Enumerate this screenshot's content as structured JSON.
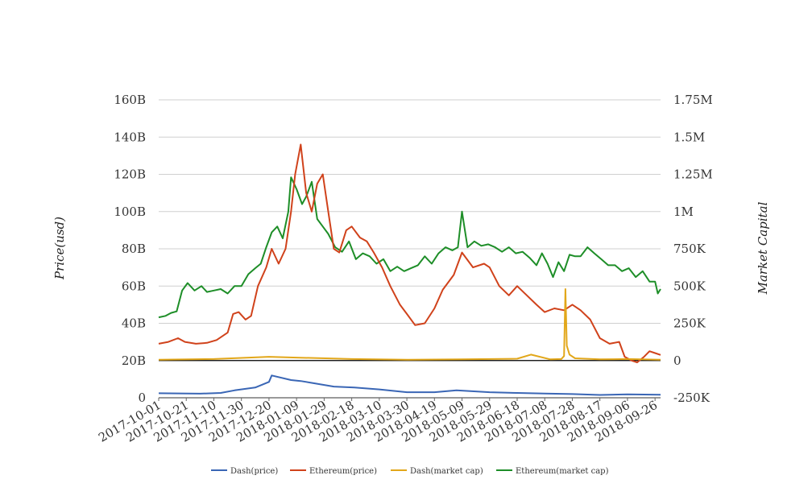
{
  "chart_data": {
    "type": "line",
    "title": "",
    "xlabel": "",
    "ylabel": "Price(usd)",
    "y2label": "Market Capital",
    "grid": true,
    "legend_position": "bottom",
    "x_start": "2017-10-01",
    "x_end": "2018-09-30",
    "x_tick_labels": [
      "2017-10-01",
      "2017-10-21",
      "2017-11-10",
      "2017-11-30",
      "2017-12-20",
      "2018-01-09",
      "2018-01-29",
      "2018-02-18",
      "2018-03-10",
      "2018-03-30",
      "2018-04-19",
      "2018-05-09",
      "2018-05-29",
      "2018-06-18",
      "2018-07-08",
      "2018-07-28",
      "2018-08-17",
      "2018-09-06",
      "2018-09-26"
    ],
    "y_left": {
      "min": 0,
      "max": 160000000000,
      "tick_values": [
        0,
        20000000000,
        40000000000,
        60000000000,
        80000000000,
        100000000000,
        120000000000,
        140000000000,
        160000000000
      ],
      "tick_labels": [
        "0",
        "20B",
        "40B",
        "60B",
        "80B",
        "100B",
        "120B",
        "140B",
        "160B"
      ]
    },
    "y_right": {
      "min": -250000,
      "max": 1750000,
      "tick_values": [
        -250000,
        0,
        250000,
        500000,
        750000,
        1000000,
        1250000,
        1500000,
        1750000
      ],
      "tick_labels": [
        "-250K",
        "0",
        "250K",
        "500K",
        "750K",
        "1M",
        "1.25M",
        "1.5M",
        "1.75M"
      ]
    },
    "series": [
      {
        "name": "Dash(price)",
        "color": "#3a66b5",
        "axis": "left",
        "x": [
          "2017-10-01",
          "2017-10-31",
          "2017-11-15",
          "2017-11-25",
          "2017-12-10",
          "2017-12-20",
          "2017-12-22",
          "2018-01-05",
          "2018-01-12",
          "2018-01-20",
          "2018-02-05",
          "2018-02-20",
          "2018-03-10",
          "2018-03-30",
          "2018-04-19",
          "2018-05-05",
          "2018-05-29",
          "2018-06-18",
          "2018-07-08",
          "2018-07-28",
          "2018-08-17",
          "2018-09-06",
          "2018-09-30"
        ],
        "values": [
          2400000000,
          2200000000,
          2600000000,
          4000000000,
          5500000000,
          8500000000,
          12000000000,
          9500000000,
          9000000000,
          8000000000,
          6000000000,
          5500000000,
          4500000000,
          3000000000,
          3000000000,
          4000000000,
          3000000000,
          2600000000,
          2300000000,
          2000000000,
          1500000000,
          1800000000,
          1600000000
        ]
      },
      {
        "name": "Ethereum(price)",
        "color": "#d0421b",
        "axis": "left",
        "x": [
          "2017-10-01",
          "2017-10-08",
          "2017-10-15",
          "2017-10-20",
          "2017-10-28",
          "2017-11-05",
          "2017-11-12",
          "2017-11-20",
          "2017-11-24",
          "2017-11-28",
          "2017-12-03",
          "2017-12-07",
          "2017-12-12",
          "2017-12-18",
          "2017-12-22",
          "2017-12-27",
          "2018-01-01",
          "2018-01-05",
          "2018-01-08",
          "2018-01-12",
          "2018-01-16",
          "2018-01-20",
          "2018-01-24",
          "2018-01-28",
          "2018-02-01",
          "2018-02-05",
          "2018-02-09",
          "2018-02-14",
          "2018-02-18",
          "2018-02-24",
          "2018-03-01",
          "2018-03-06",
          "2018-03-12",
          "2018-03-18",
          "2018-03-25",
          "2018-03-30",
          "2018-04-05",
          "2018-04-12",
          "2018-04-19",
          "2018-04-25",
          "2018-05-03",
          "2018-05-09",
          "2018-05-17",
          "2018-05-25",
          "2018-05-29",
          "2018-06-05",
          "2018-06-12",
          "2018-06-18",
          "2018-06-25",
          "2018-07-02",
          "2018-07-08",
          "2018-07-15",
          "2018-07-22",
          "2018-07-28",
          "2018-08-03",
          "2018-08-10",
          "2018-08-17",
          "2018-08-24",
          "2018-08-31",
          "2018-09-04",
          "2018-09-09",
          "2018-09-13",
          "2018-09-18",
          "2018-09-22",
          "2018-09-26",
          "2018-09-30"
        ],
        "values": [
          29000000000,
          30000000000,
          32000000000,
          30000000000,
          29000000000,
          29500000000,
          31000000000,
          35000000000,
          45000000000,
          46000000000,
          42000000000,
          44000000000,
          60000000000,
          70000000000,
          80000000000,
          72000000000,
          80000000000,
          100000000000,
          120000000000,
          136000000000,
          110000000000,
          100000000000,
          115000000000,
          120000000000,
          100000000000,
          80000000000,
          78000000000,
          90000000000,
          92000000000,
          86000000000,
          84000000000,
          78000000000,
          70000000000,
          60000000000,
          50000000000,
          45000000000,
          39000000000,
          40000000000,
          48000000000,
          58000000000,
          66000000000,
          78000000000,
          70000000000,
          72000000000,
          70000000000,
          60000000000,
          55000000000,
          60000000000,
          55000000000,
          50000000000,
          46000000000,
          48000000000,
          47000000000,
          50000000000,
          47000000000,
          42000000000,
          32000000000,
          29000000000,
          30000000000,
          22000000000,
          20000000000,
          19000000000,
          22000000000,
          25000000000,
          24000000000,
          23000000000
        ]
      },
      {
        "name": "Dash(market cap)",
        "color": "#e2a71a",
        "axis": "right",
        "x": [
          "2017-10-01",
          "2017-11-10",
          "2017-12-20",
          "2018-01-09",
          "2018-02-18",
          "2018-03-30",
          "2018-05-09",
          "2018-06-18",
          "2018-06-28",
          "2018-07-12",
          "2018-07-20",
          "2018-07-22",
          "2018-07-23",
          "2018-07-24",
          "2018-07-26",
          "2018-07-30",
          "2018-08-17",
          "2018-09-06",
          "2018-09-30"
        ],
        "values": [
          5000,
          10000,
          25000,
          20000,
          10000,
          5000,
          8000,
          12000,
          40000,
          8000,
          10000,
          30000,
          480000,
          100000,
          40000,
          15000,
          8000,
          10000,
          5000
        ]
      },
      {
        "name": "Ethereum(market cap)",
        "color": "#1e8e28",
        "axis": "right",
        "x": [
          "2017-10-01",
          "2017-10-06",
          "2017-10-10",
          "2017-10-14",
          "2017-10-18",
          "2017-10-22",
          "2017-10-27",
          "2017-11-01",
          "2017-11-05",
          "2017-11-10",
          "2017-11-15",
          "2017-11-20",
          "2017-11-25",
          "2017-11-30",
          "2017-12-05",
          "2017-12-10",
          "2017-12-14",
          "2017-12-18",
          "2017-12-22",
          "2017-12-26",
          "2017-12-30",
          "2018-01-03",
          "2018-01-05",
          "2018-01-09",
          "2018-01-13",
          "2018-01-16",
          "2018-01-20",
          "2018-01-24",
          "2018-01-28",
          "2018-02-01",
          "2018-02-06",
          "2018-02-11",
          "2018-02-16",
          "2018-02-21",
          "2018-02-26",
          "2018-03-03",
          "2018-03-08",
          "2018-03-13",
          "2018-03-18",
          "2018-03-23",
          "2018-03-28",
          "2018-04-02",
          "2018-04-07",
          "2018-04-12",
          "2018-04-17",
          "2018-04-22",
          "2018-04-27",
          "2018-05-02",
          "2018-05-06",
          "2018-05-09",
          "2018-05-13",
          "2018-05-18",
          "2018-05-23",
          "2018-05-28",
          "2018-06-02",
          "2018-06-07",
          "2018-06-12",
          "2018-06-17",
          "2018-06-22",
          "2018-06-27",
          "2018-07-02",
          "2018-07-06",
          "2018-07-10",
          "2018-07-14",
          "2018-07-18",
          "2018-07-22",
          "2018-07-26",
          "2018-07-30",
          "2018-08-03",
          "2018-08-08",
          "2018-08-13",
          "2018-08-18",
          "2018-08-23",
          "2018-08-28",
          "2018-09-02",
          "2018-09-07",
          "2018-09-12",
          "2018-09-17",
          "2018-09-22",
          "2018-09-26",
          "2018-09-28",
          "2018-09-30"
        ],
        "values": [
          290000,
          300000,
          320000,
          330000,
          470000,
          520000,
          470000,
          500000,
          460000,
          470000,
          480000,
          450000,
          500000,
          500000,
          580000,
          620000,
          650000,
          760000,
          860000,
          900000,
          820000,
          1000000,
          1230000,
          1150000,
          1050000,
          1100000,
          1200000,
          950000,
          900000,
          850000,
          760000,
          730000,
          800000,
          680000,
          720000,
          700000,
          650000,
          680000,
          600000,
          630000,
          600000,
          620000,
          640000,
          700000,
          650000,
          720000,
          760000,
          740000,
          760000,
          1000000,
          760000,
          800000,
          770000,
          780000,
          760000,
          730000,
          760000,
          720000,
          730000,
          690000,
          640000,
          720000,
          650000,
          560000,
          660000,
          600000,
          710000,
          700000,
          700000,
          760000,
          720000,
          680000,
          640000,
          640000,
          600000,
          620000,
          560000,
          600000,
          530000,
          530000,
          450000,
          480000
        ]
      }
    ]
  }
}
